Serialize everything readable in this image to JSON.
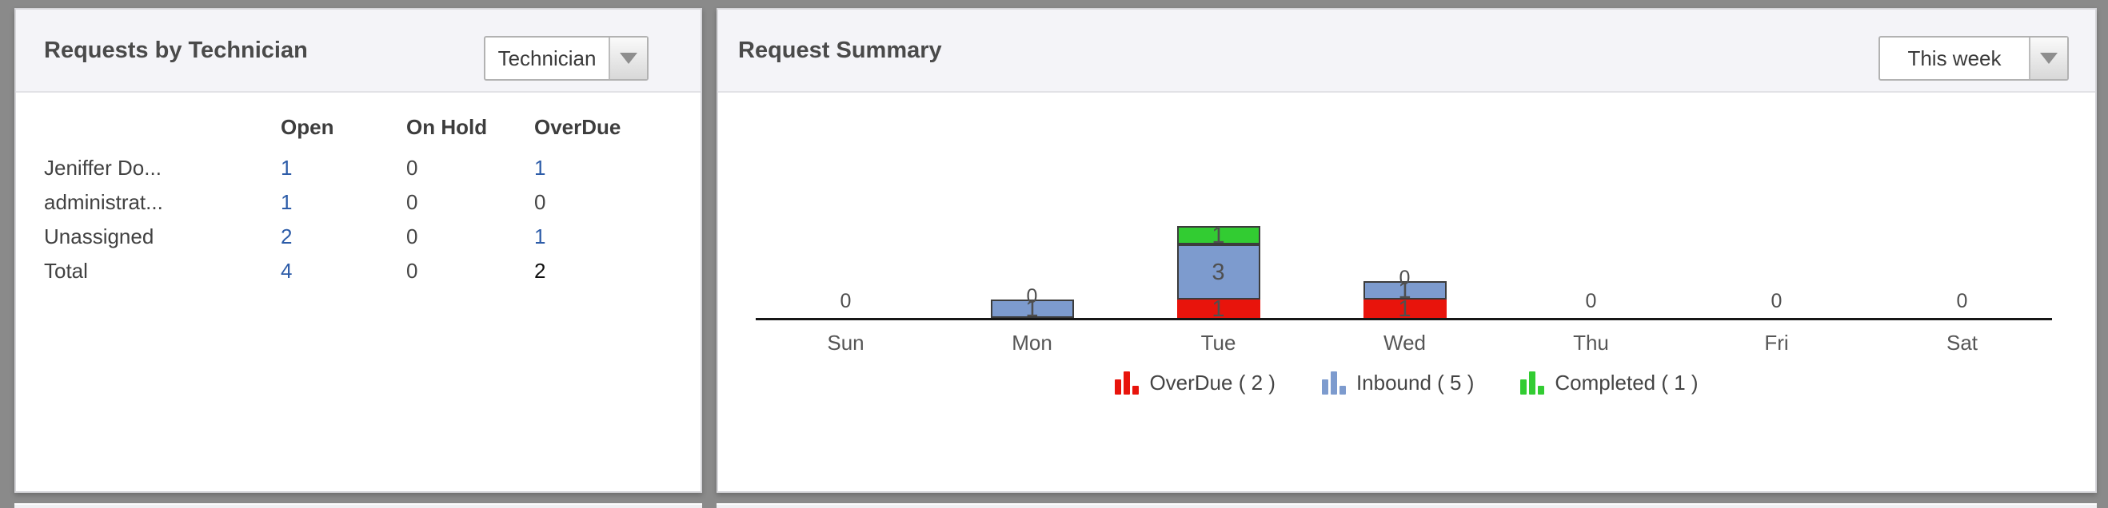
{
  "left_panel": {
    "title": "Requests by Technician",
    "dropdown": {
      "value": "Technician"
    },
    "table": {
      "headers": [
        "Open",
        "On Hold",
        "OverDue"
      ],
      "rows": [
        {
          "name": "Jeniffer Do...",
          "cells": [
            {
              "text": "1",
              "style": "link"
            },
            {
              "text": "0",
              "style": "plain"
            },
            {
              "text": "1",
              "style": "link"
            }
          ]
        },
        {
          "name": "administrat...",
          "cells": [
            {
              "text": "1",
              "style": "link"
            },
            {
              "text": "0",
              "style": "plain"
            },
            {
              "text": "0",
              "style": "plain"
            }
          ]
        },
        {
          "name": "Unassigned",
          "cells": [
            {
              "text": "2",
              "style": "link"
            },
            {
              "text": "0",
              "style": "plain"
            },
            {
              "text": "1",
              "style": "link"
            }
          ]
        },
        {
          "name": "Total",
          "cells": [
            {
              "text": "4",
              "style": "link"
            },
            {
              "text": "0",
              "style": "plain"
            },
            {
              "text": "2",
              "style": "black"
            }
          ]
        }
      ]
    }
  },
  "right_panel": {
    "title": "Request Summary",
    "dropdown": {
      "value": "This week"
    },
    "chart_data": {
      "type": "stacked_bar",
      "categories": [
        "Sun",
        "Mon",
        "Tue",
        "Wed",
        "Thu",
        "Fri",
        "Sat"
      ],
      "series": [
        {
          "name": "OverDue",
          "color": "#e8140c",
          "bordered": false,
          "values": [
            0,
            0,
            1,
            1,
            0,
            0,
            0
          ],
          "total": 2,
          "legend_label": "OverDue ( 2 )"
        },
        {
          "name": "Inbound",
          "color": "#7d9bce",
          "bordered": true,
          "values": [
            0,
            1,
            3,
            1,
            0,
            0,
            0
          ],
          "total": 5,
          "legend_label": "Inbound ( 5 )"
        },
        {
          "name": "Completed",
          "color": "#32cc32",
          "bordered": true,
          "values": [
            0,
            0,
            1,
            0,
            0,
            0,
            0
          ],
          "total": 1,
          "legend_label": "Completed ( 1 )"
        }
      ],
      "ylim": [
        0,
        5
      ],
      "grid": false,
      "legend_position": "bottom",
      "zero_value_labels_shown": true,
      "title": "Request Summary",
      "xlabel": "",
      "ylabel": ""
    }
  },
  "colors": {
    "link_blue": "#2d5ca8",
    "overdue_red": "#e8140c",
    "inbound_blue": "#7d9bce",
    "completed_green": "#32cc32",
    "panel_header_bg": "#f4f4f8",
    "page_bg": "#8a8a8a"
  }
}
